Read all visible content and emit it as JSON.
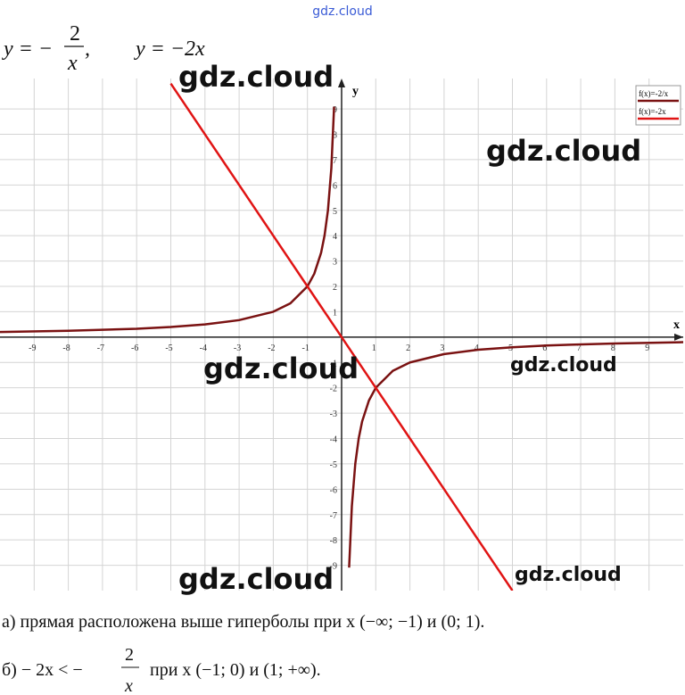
{
  "header": {
    "site": "gdz.cloud",
    "f1_lhs": "y = −",
    "f1_num": "2",
    "f1_den": "x",
    "f1_tail": ",",
    "f2": "y = −2x"
  },
  "chart_data": {
    "type": "line",
    "x_label": "x",
    "y_label": "y",
    "x": [
      -10,
      -8,
      -6,
      -5,
      -4,
      -3,
      -2,
      -1.5,
      -1,
      -0.8,
      -0.6,
      -0.5,
      -0.4,
      -0.3,
      -0.22,
      0,
      0.22,
      0.3,
      0.4,
      0.5,
      0.6,
      0.8,
      1,
      1.5,
      2,
      3,
      4,
      5,
      6,
      8,
      10
    ],
    "series": [
      {
        "name": "f(x)=-2/x",
        "color": "#7a1212",
        "values": [
          0.2,
          0.25,
          0.33,
          0.4,
          0.5,
          0.67,
          1,
          1.33,
          2,
          2.5,
          3.33,
          4,
          5,
          6.67,
          9.09,
          null,
          -9.09,
          -6.67,
          -5,
          -4,
          -3.33,
          -2.5,
          -2,
          -1.33,
          -1,
          -0.67,
          -0.5,
          -0.4,
          -0.33,
          -0.25,
          -0.2
        ]
      },
      {
        "name": "f(x)=-2x",
        "color": "#e01414",
        "values": [
          null,
          null,
          null,
          10,
          8,
          6,
          4,
          3,
          2,
          1.6,
          1.2,
          1,
          0.8,
          0.6,
          0.44,
          0,
          -0.44,
          -0.6,
          -0.8,
          -1,
          -1.2,
          -1.6,
          -2,
          -3,
          -4,
          -6,
          -8,
          -10,
          null,
          null,
          null
        ]
      }
    ],
    "xlim": [
      -10,
      10
    ],
    "ylim": [
      -10,
      10.2
    ],
    "xticks": [
      -9,
      -8,
      -7,
      -6,
      -5,
      -4,
      -3,
      -2,
      -1,
      1,
      2,
      3,
      4,
      5,
      6,
      7,
      8,
      9
    ],
    "yticks": [
      -9,
      -8,
      -7,
      -6,
      -5,
      -4,
      -3,
      -2,
      -1,
      1,
      2,
      3,
      4,
      5,
      6,
      7,
      8,
      9
    ],
    "grid": true,
    "legend": "upper right"
  },
  "answers": {
    "a": "а) прямая расположена выше гиперболы при x (−∞; −1) и (0; 1).",
    "b_lhs": "б) − 2x < −",
    "b_num": "2",
    "b_den": "x",
    "b_tail": "при x (−1; 0) и (1; +∞)."
  },
  "watermarks": [
    "gdz.cloud",
    "gdz.cloud",
    "gdz.cloud",
    "gdz.cloud",
    "gdz.cloud",
    "gdz.cloud"
  ]
}
